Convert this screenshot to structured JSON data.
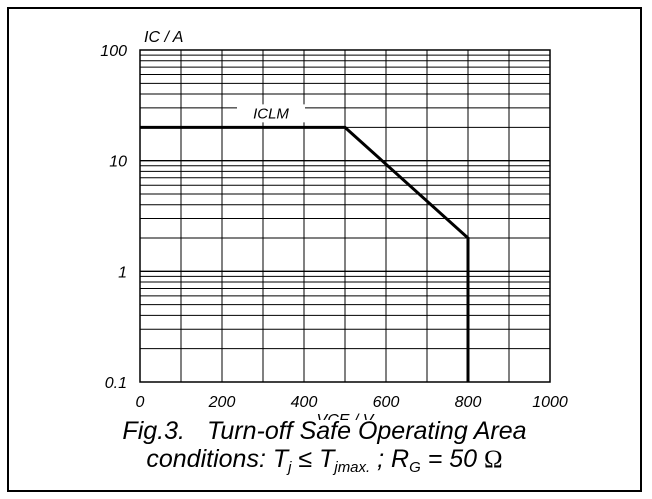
{
  "chart_data": {
    "type": "line",
    "ylabel": "IC / A",
    "xlabel": "VCE / V",
    "yscale": "log",
    "xlim": [
      0,
      1000
    ],
    "ylim": [
      0.1,
      100
    ],
    "x_ticks": [
      "0",
      "200",
      "400",
      "600",
      "800",
      "1000"
    ],
    "y_ticks": [
      "0.1",
      "1",
      "10",
      "100"
    ],
    "grid": true,
    "annotations": [
      {
        "text": "ICLM",
        "x": 300,
        "y": 20
      }
    ],
    "series": [
      {
        "x": [
          0,
          500,
          800,
          800
        ],
        "y": [
          20,
          20,
          2,
          0.1
        ]
      }
    ]
  },
  "caption": {
    "line1_fig": "Fig.3.",
    "line1_text": "Turn-off Safe Operating Area",
    "line2_prefix": "conditions: T",
    "tj_sub": "j",
    "le": " ≤ T",
    "tjmax_sub": "jmax.",
    "sep": " ; R",
    "rg_sub": "G",
    "eq": " = 50 ",
    "omega": "Ω"
  }
}
